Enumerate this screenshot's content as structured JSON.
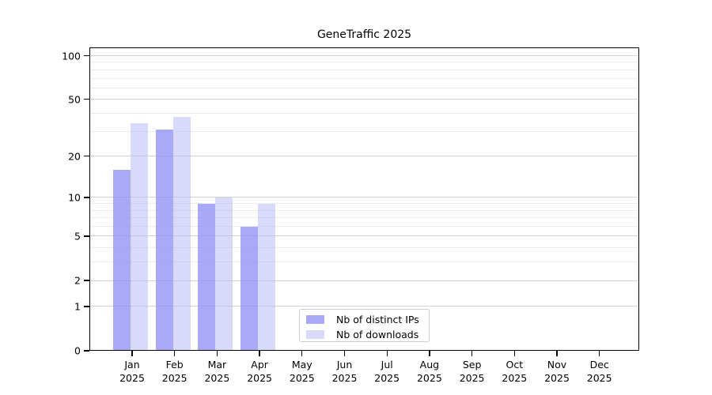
{
  "title": "GeneTraffic 2025",
  "colors": {
    "dark_bar": "rgba(148,148,245,0.8)",
    "light_bar": "rgba(179,179,245,0.5)",
    "major_grid": "#d2d2d2",
    "minor_grid": "#ebebeb",
    "axis": "#000000",
    "legend_border": "#cccccc"
  },
  "chart_data": {
    "type": "bar",
    "title": "GeneTraffic 2025",
    "y_scale": "log10(1+x)",
    "ylim": [
      0,
      114
    ],
    "y_ticks": [
      0,
      1,
      2,
      5,
      10,
      20,
      50,
      100
    ],
    "y_minor_ticks": [
      3,
      4,
      6,
      7,
      8,
      9,
      30,
      40,
      60,
      70,
      80,
      90
    ],
    "categories": [
      "Jan",
      "Feb",
      "Mar",
      "Apr",
      "May",
      "Jun",
      "Jul",
      "Aug",
      "Sep",
      "Oct",
      "Nov",
      "Dec"
    ],
    "x_tick_year": "2025",
    "grid": true,
    "legend_position": "lower center",
    "series": [
      {
        "name": "Nb of distinct IPs",
        "color": "rgba(148,148,245,0.8)",
        "values": [
          16,
          31,
          9,
          6,
          0,
          0,
          0,
          0,
          0,
          0,
          0,
          0
        ]
      },
      {
        "name": "Nb of downloads",
        "color": "rgba(179,179,245,0.5)",
        "values": [
          34,
          38,
          10,
          9,
          0,
          0,
          0,
          0,
          0,
          0,
          0,
          0
        ]
      }
    ]
  }
}
